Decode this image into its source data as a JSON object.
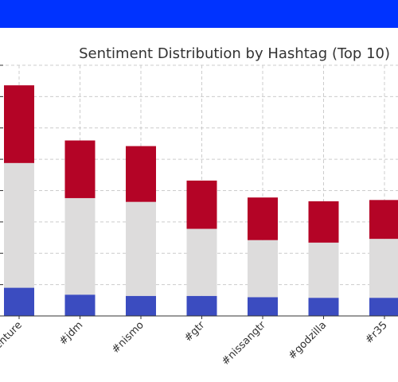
{
  "header": {
    "bar_color": "#0033ff"
  },
  "chart_data": {
    "type": "bar",
    "stacked": true,
    "title": "Sentiment Distribution by Hashtag (Top 10)",
    "xlabel": "",
    "ylabel": "",
    "categories": [
      "#nissanadventure",
      "#jdm",
      "#nismo",
      "#gtr",
      "#nissangtr",
      "#godzilla",
      "#r35"
    ],
    "series": [
      {
        "color": "#3b4cc0",
        "values": [
          9.0,
          6.8,
          6.4,
          6.4,
          6.0,
          5.8,
          5.8
        ]
      },
      {
        "color": "#dddcdc",
        "values": [
          39.8,
          30.8,
          30.0,
          21.4,
          18.2,
          17.6,
          18.8
        ]
      },
      {
        "color": "#b40426",
        "values": [
          24.8,
          18.4,
          17.8,
          15.4,
          13.6,
          13.2,
          12.4
        ]
      }
    ],
    "ylim": [
      0,
      80
    ],
    "grid": true,
    "legend": "none"
  }
}
